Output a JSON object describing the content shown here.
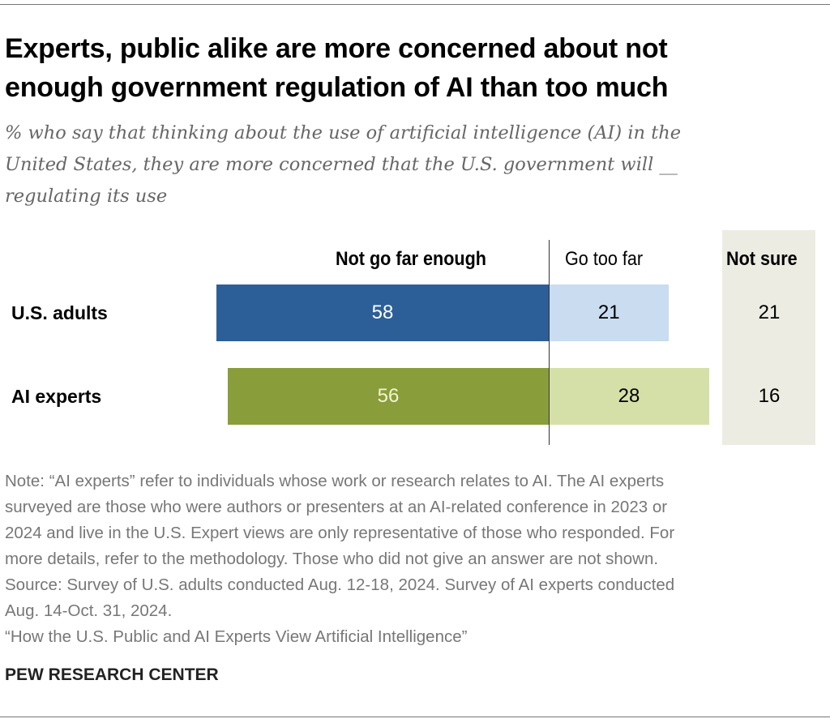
{
  "title": [
    "Experts, public alike are more concerned about not",
    "enough government regulation of AI than too much"
  ],
  "subtitle": [
    "% who say that thinking about the use of artificial intelligence (AI) in the",
    "United States, they are more concerned that the U.S. government will __",
    "regulating its use"
  ],
  "chart_data": {
    "type": "bar",
    "orientation": "horizontal-diverging",
    "categories": [
      "U.S. adults",
      "AI experts"
    ],
    "series": [
      {
        "name": "Not go far enough",
        "values": [
          58,
          56
        ],
        "colors": [
          "#2c5f97",
          "#8a9d3b"
        ]
      },
      {
        "name": "Go too far",
        "values": [
          21,
          28
        ],
        "colors": [
          "#c9dcf0",
          "#d5dfa8"
        ]
      },
      {
        "name": "Not sure",
        "values": [
          21,
          16
        ]
      }
    ],
    "grid": false
  },
  "notes": [
    "Note: “AI experts” refer to individuals whose work or research relates to AI. The AI experts",
    "surveyed are those who were authors or presenters at an AI-related conference in 2023 or",
    "2024 and live in the U.S. Expert views are only representative of those who responded. For",
    "more details, refer to the methodology. Those who did not give an answer are not shown.",
    "Source: Survey of U.S. adults conducted Aug. 12-18, 2024. Survey of AI experts conducted",
    "Aug. 14-Oct. 31, 2024.",
    "“How the U.S. Public and AI Experts View Artificial Intelligence”"
  ],
  "source_org": "PEW RESEARCH CENTER"
}
